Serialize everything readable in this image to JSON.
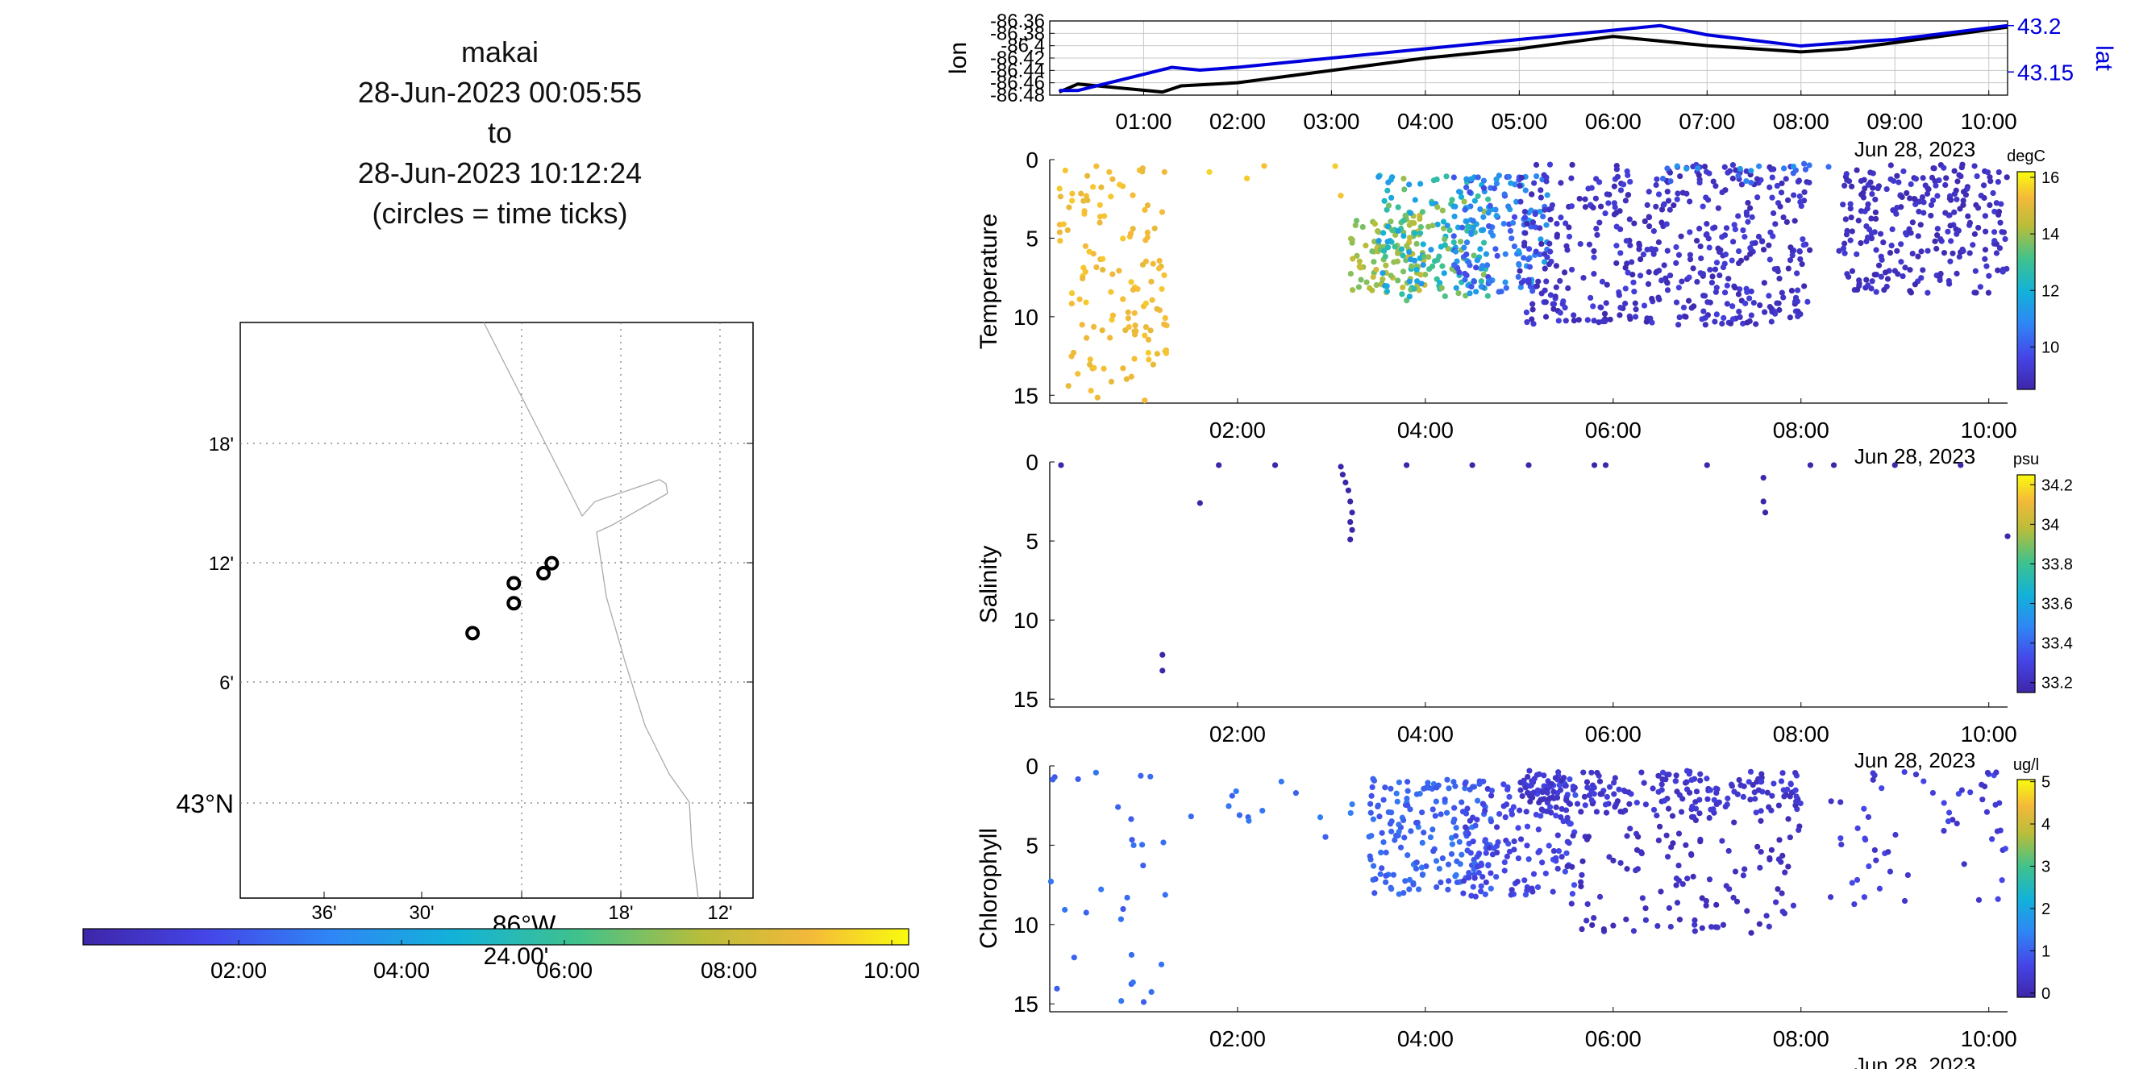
{
  "title": {
    "name": "makai",
    "start": "28-Jun-2023 00:05:55",
    "to": "to",
    "end": "28-Jun-2023 10:12:24",
    "note": "(circles = time ticks)"
  },
  "map": {
    "lat_ticks": [
      "18'",
      "12'",
      "6'",
      "43°N"
    ],
    "lon_ticks": [
      "36'",
      "30'",
      "24.00'",
      "18'",
      "12'"
    ],
    "lon_label": "86°W",
    "circles": [
      {
        "lon_min": -27.0,
        "lat_min": 8.5
      },
      {
        "lon_min": -24.5,
        "lat_min": 10.0
      },
      {
        "lon_min": -24.5,
        "lat_min": 11.0
      },
      {
        "lon_min": -22.7,
        "lat_min": 11.5
      },
      {
        "lon_min": -22.2,
        "lat_min": 12.0
      }
    ],
    "colorbar_ticks": [
      "02:00",
      "04:00",
      "06:00",
      "08:00",
      "10:00"
    ]
  },
  "colors": {
    "track_lon": "#000000",
    "track_lat": "#0000dd",
    "grid": "#c8c8c8"
  },
  "chart_data": [
    {
      "type": "line",
      "title": "",
      "xlabel": "",
      "ylabel": "lon",
      "ylabel_right": "lat",
      "date_label": "Jun 28, 2023",
      "x_ticks": [
        "01:00",
        "02:00",
        "03:00",
        "04:00",
        "05:00",
        "06:00",
        "07:00",
        "08:00",
        "09:00",
        "10:00"
      ],
      "ylim": [
        -86.48,
        -86.36
      ],
      "yticks": [
        "-86.36",
        "-86.38",
        "-86.4",
        "-86.42",
        "-86.44",
        "-86.46",
        "-86.48"
      ],
      "ylim_right": [
        43.125,
        43.205
      ],
      "yticks_right": [
        "43.2",
        "43.15"
      ],
      "series": [
        {
          "name": "lon",
          "axis": "left",
          "x": [
            0.1,
            0.3,
            1.2,
            1.4,
            2.0,
            3.0,
            4.0,
            5.0,
            6.0,
            7.0,
            8.0,
            8.5,
            9.0,
            10.2
          ],
          "values": [
            -86.475,
            -86.462,
            -86.475,
            -86.465,
            -86.46,
            -86.44,
            -86.42,
            -86.405,
            -86.385,
            -86.4,
            -86.41,
            -86.405,
            -86.395,
            -86.37
          ]
        },
        {
          "name": "lat",
          "axis": "right",
          "x": [
            0.1,
            0.3,
            1.3,
            1.6,
            2.0,
            3.0,
            4.0,
            5.0,
            6.0,
            6.5,
            7.0,
            8.0,
            8.5,
            9.0,
            10.2
          ],
          "values": [
            43.13,
            43.13,
            43.155,
            43.152,
            43.155,
            43.165,
            43.175,
            43.185,
            43.195,
            43.2,
            43.19,
            43.178,
            43.182,
            43.185,
            43.2
          ]
        }
      ]
    },
    {
      "type": "scatter",
      "ylabel": "Temperature",
      "date_label": "Jun 28, 2023",
      "x_ticks": [
        "02:00",
        "04:00",
        "06:00",
        "08:00",
        "10:00"
      ],
      "yticks": [
        "0",
        "5",
        "10",
        "15"
      ],
      "ylim": [
        15.5,
        0
      ],
      "colorbar": {
        "units": "degC",
        "ticks": [
          "16",
          "14",
          "12",
          "10"
        ],
        "range": [
          8.5,
          16.2
        ]
      },
      "x_range": [
        0.0,
        10.2
      ],
      "clusters": [
        {
          "x": [
            0.1,
            1.25
          ],
          "y": [
            0.3,
            15.4
          ],
          "c": [
            14.8,
            15.4
          ],
          "n": 130
        },
        {
          "x": [
            1.6,
            3.2
          ],
          "y": [
            0.2,
            2.8
          ],
          "c": [
            15.2,
            15.6
          ],
          "n": 5
        },
        {
          "x": [
            3.2,
            4.0
          ],
          "y": [
            3.5,
            8.5
          ],
          "c": [
            13.2,
            14.4
          ],
          "n": 90
        },
        {
          "x": [
            3.5,
            4.7
          ],
          "y": [
            1.0,
            9.0
          ],
          "c": [
            11.0,
            13.8
          ],
          "n": 160
        },
        {
          "x": [
            4.3,
            5.3
          ],
          "y": [
            1.0,
            8.5
          ],
          "c": [
            9.5,
            11.5
          ],
          "n": 150
        },
        {
          "x": [
            5.0,
            8.1
          ],
          "y": [
            0.3,
            10.6
          ],
          "c": [
            8.6,
            9.4
          ],
          "n": 480
        },
        {
          "x": [
            6.5,
            8.3
          ],
          "y": [
            0.2,
            1.5
          ],
          "c": [
            10.0,
            11.2
          ],
          "n": 20
        },
        {
          "x": [
            8.4,
            10.2
          ],
          "y": [
            0.3,
            8.5
          ],
          "c": [
            8.6,
            9.2
          ],
          "n": 260
        }
      ]
    },
    {
      "type": "scatter",
      "ylabel": "Salinity",
      "date_label": "Jun 28, 2023",
      "x_ticks": [
        "02:00",
        "04:00",
        "06:00",
        "08:00",
        "10:00"
      ],
      "yticks": [
        "0",
        "5",
        "10",
        "15"
      ],
      "ylim": [
        15.5,
        0
      ],
      "colorbar": {
        "units": "psu",
        "ticks": [
          "34.2",
          "34",
          "33.8",
          "33.6",
          "33.4",
          "33.2"
        ],
        "range": [
          33.2,
          34.2
        ]
      },
      "points": [
        {
          "x": 0.12,
          "y": 0.2,
          "c": 33.2
        },
        {
          "x": 1.2,
          "y": 12.2,
          "c": 33.2
        },
        {
          "x": 1.2,
          "y": 13.2,
          "c": 33.2
        },
        {
          "x": 1.6,
          "y": 2.6,
          "c": 33.2
        },
        {
          "x": 1.8,
          "y": 0.2,
          "c": 33.2
        },
        {
          "x": 2.4,
          "y": 0.2,
          "c": 33.2
        },
        {
          "x": 3.1,
          "y": 0.3,
          "c": 33.2
        },
        {
          "x": 3.12,
          "y": 0.8,
          "c": 33.2
        },
        {
          "x": 3.15,
          "y": 1.3,
          "c": 33.2
        },
        {
          "x": 3.18,
          "y": 1.8,
          "c": 33.2
        },
        {
          "x": 3.2,
          "y": 2.5,
          "c": 33.2
        },
        {
          "x": 3.22,
          "y": 3.2,
          "c": 33.2
        },
        {
          "x": 3.2,
          "y": 3.8,
          "c": 33.2
        },
        {
          "x": 3.22,
          "y": 4.3,
          "c": 33.2
        },
        {
          "x": 3.2,
          "y": 4.9,
          "c": 33.2
        },
        {
          "x": 3.8,
          "y": 0.2,
          "c": 33.2
        },
        {
          "x": 4.5,
          "y": 0.2,
          "c": 33.2
        },
        {
          "x": 5.1,
          "y": 0.2,
          "c": 33.2
        },
        {
          "x": 5.8,
          "y": 0.2,
          "c": 33.2
        },
        {
          "x": 5.92,
          "y": 0.2,
          "c": 33.2
        },
        {
          "x": 7.0,
          "y": 0.2,
          "c": 33.2
        },
        {
          "x": 7.6,
          "y": 1.0,
          "c": 33.2
        },
        {
          "x": 7.6,
          "y": 2.5,
          "c": 33.2
        },
        {
          "x": 7.62,
          "y": 3.2,
          "c": 33.2
        },
        {
          "x": 8.1,
          "y": 0.2,
          "c": 33.2
        },
        {
          "x": 8.35,
          "y": 0.2,
          "c": 33.2
        },
        {
          "x": 9.0,
          "y": 0.2,
          "c": 33.2
        },
        {
          "x": 9.7,
          "y": 0.2,
          "c": 33.2
        },
        {
          "x": 10.2,
          "y": 4.7,
          "c": 33.2
        }
      ]
    },
    {
      "type": "scatter",
      "ylabel": "Chlorophyll",
      "date_label": "Jun 28, 2023",
      "x_ticks": [
        "02:00",
        "04:00",
        "06:00",
        "08:00",
        "10:00"
      ],
      "yticks": [
        "0",
        "5",
        "10",
        "15"
      ],
      "ylim": [
        15.5,
        0
      ],
      "colorbar": {
        "units": "ug/l",
        "ticks": [
          "5",
          "4",
          "3",
          "2",
          "1",
          "0"
        ],
        "range": [
          0,
          5
        ]
      },
      "x_range": [
        0.0,
        10.2
      ],
      "clusters": [
        {
          "x": [
            0.0,
            1.25
          ],
          "y": [
            0.3,
            15.0
          ],
          "c": [
            0.9,
            1.3
          ],
          "n": 30
        },
        {
          "x": [
            1.5,
            3.3
          ],
          "y": [
            0.2,
            4.8
          ],
          "c": [
            1.0,
            1.4
          ],
          "n": 14
        },
        {
          "x": [
            3.4,
            4.7
          ],
          "y": [
            0.8,
            8.2
          ],
          "c": [
            0.8,
            1.3
          ],
          "n": 170
        },
        {
          "x": [
            4.4,
            5.6
          ],
          "y": [
            0.8,
            8.4
          ],
          "c": [
            0.4,
            0.9
          ],
          "n": 140
        },
        {
          "x": [
            5.0,
            8.0
          ],
          "y": [
            0.3,
            3.0
          ],
          "c": [
            0.2,
            0.6
          ],
          "n": 220
        },
        {
          "x": [
            5.5,
            8.0
          ],
          "y": [
            3.0,
            10.6
          ],
          "c": [
            0.1,
            0.4
          ],
          "n": 120
        },
        {
          "x": [
            8.3,
            10.2
          ],
          "y": [
            0.3,
            8.8
          ],
          "c": [
            0.3,
            0.8
          ],
          "n": 60
        }
      ]
    }
  ]
}
